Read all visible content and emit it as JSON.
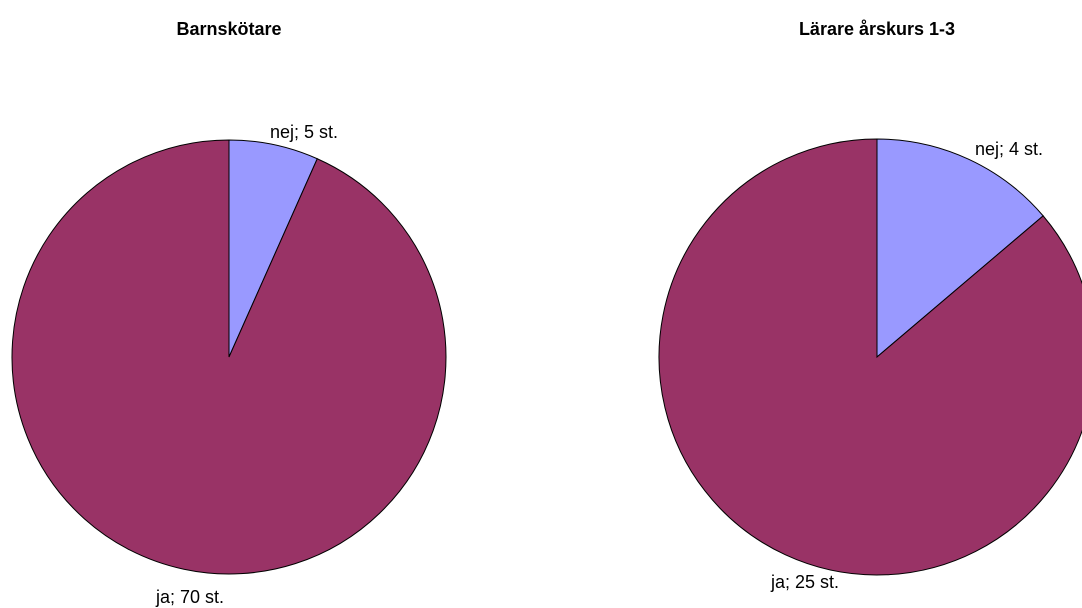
{
  "chart_data": [
    {
      "type": "pie",
      "title": "Barnskötare",
      "values": [
        5,
        70
      ],
      "value_labels": [
        "nej; 5 st.",
        "ja; 70 st."
      ],
      "colors": [
        "#9999ff",
        "#993366"
      ]
    },
    {
      "type": "pie",
      "title": "Lärare årskurs 1-3",
      "values": [
        4,
        25
      ],
      "value_labels": [
        "nej; 4 st.",
        "ja; 25 st."
      ],
      "colors": [
        "#9999ff",
        "#993366"
      ]
    }
  ]
}
